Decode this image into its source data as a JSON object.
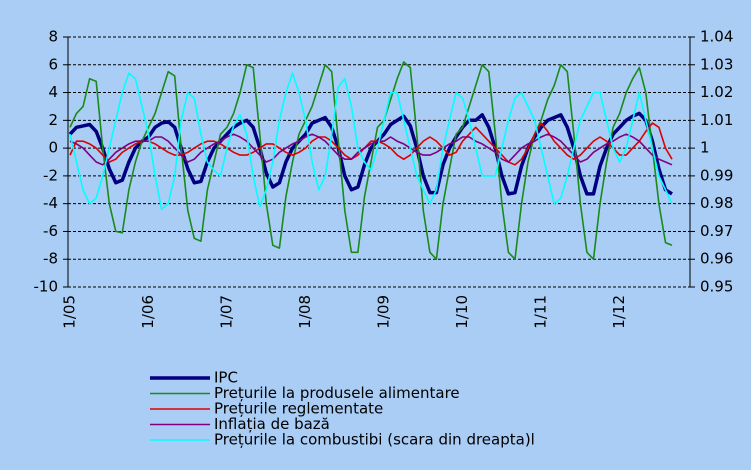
{
  "chart_data": {
    "type": "line",
    "categories": [
      "1/05",
      null,
      null,
      null,
      null,
      null,
      null,
      null,
      null,
      null,
      null,
      null,
      "1/06",
      null,
      null,
      null,
      null,
      null,
      null,
      null,
      null,
      null,
      null,
      null,
      "1/07",
      null,
      null,
      null,
      null,
      null,
      null,
      null,
      null,
      null,
      null,
      null,
      "1/08",
      null,
      null,
      null,
      null,
      null,
      null,
      null,
      null,
      null,
      null,
      null,
      "1/09",
      null,
      null,
      null,
      null,
      null,
      null,
      null,
      null,
      null,
      null,
      null,
      "1/10",
      null,
      null,
      null,
      null,
      null,
      null,
      null,
      null,
      null,
      null,
      null,
      "1/11",
      null,
      null,
      null,
      null,
      null,
      null,
      null,
      null,
      null,
      null,
      null,
      "1/12",
      null,
      null,
      null,
      null,
      null,
      null,
      null,
      null
    ],
    "ylim": [
      -10,
      8
    ],
    "yticks": [
      -10,
      -8,
      -6,
      -4,
      -2,
      0,
      2,
      4,
      6,
      8
    ],
    "y2lim": [
      0.95,
      1.04
    ],
    "y2ticks": [
      0.95,
      0.96,
      0.97,
      0.98,
      0.99,
      1,
      1.01,
      1.02,
      1.03,
      1.04
    ],
    "grid": true,
    "legend": "bottom",
    "series": [
      {
        "name": "IPC",
        "color": "#000080",
        "values": [
          1,
          1.5,
          1.6,
          1.7,
          1.2,
          0,
          -1.5,
          -2.5,
          -2.3,
          -1,
          0,
          0.5,
          0.8,
          1.5,
          1.8,
          1.9,
          1.5,
          0,
          -1.5,
          -2.5,
          -2.4,
          -1,
          0,
          0.5,
          1,
          1.5,
          1.8,
          2,
          1.5,
          0,
          -1.8,
          -2.8,
          -2.5,
          -1,
          0,
          0.5,
          1,
          1.8,
          2,
          2.2,
          1.5,
          0,
          -2,
          -3,
          -2.8,
          -1.2,
          0,
          0.5,
          1,
          1.7,
          2,
          2.3,
          1.6,
          0,
          -2,
          -3.2,
          -3.2,
          -1.2,
          0,
          0.8,
          1.5,
          2,
          2,
          2.4,
          1.5,
          0,
          -2,
          -3.3,
          -3.2,
          -1.3,
          0,
          0.8,
          1.5,
          2,
          2.2,
          2.4,
          1.5,
          0,
          -2,
          -3.3,
          -3.3,
          -1.3,
          0,
          1,
          1.5,
          2,
          2.3,
          2.5,
          2,
          0.5,
          -1.5,
          -3,
          -3.3
        ]
      },
      {
        "name": "Prețurile la produsele alimentare",
        "color": "#1a8a1a",
        "values": [
          1.5,
          2.5,
          3,
          5,
          4.8,
          0,
          -4,
          -6,
          -6.1,
          -3,
          -1,
          0.5,
          1.5,
          2.5,
          4,
          5.5,
          5.2,
          0,
          -4.5,
          -6.5,
          -6.7,
          -3,
          -1,
          1,
          1.5,
          2.5,
          4,
          6,
          5.8,
          1,
          -4,
          -7,
          -7.2,
          -3.5,
          -1,
          1,
          2,
          3,
          4.5,
          6,
          5.5,
          0.5,
          -4.5,
          -7.5,
          -7.5,
          -3.5,
          -1,
          1.5,
          2,
          3.5,
          5,
          6.2,
          5.8,
          1,
          -4.5,
          -7.5,
          -8,
          -4,
          -1.5,
          1,
          1.5,
          3,
          4.5,
          6,
          5.5,
          1,
          -4,
          -7.5,
          -8,
          -4,
          -1,
          1,
          2,
          3.5,
          4.5,
          6,
          5.5,
          1,
          -4,
          -7.5,
          -8,
          -4,
          -1,
          1.5,
          2.5,
          4,
          5,
          5.8,
          4,
          0,
          -4,
          -6.8,
          -7
        ]
      },
      {
        "name": "Prețurile reglementate",
        "color": "#e00000",
        "values": [
          -0.5,
          0.5,
          0.5,
          0.3,
          0,
          -0.5,
          -1,
          -0.8,
          -0.3,
          0,
          0.3,
          0.5,
          0.5,
          0.3,
          0,
          -0.3,
          -0.5,
          -0.5,
          -0.3,
          0,
          0.3,
          0.5,
          0.5,
          0.3,
          0,
          -0.3,
          -0.5,
          -0.5,
          -0.3,
          0,
          0.3,
          0.3,
          0,
          -0.3,
          -0.5,
          -0.3,
          0,
          0.5,
          0.8,
          0.8,
          0.5,
          0,
          -0.5,
          -0.8,
          -0.5,
          0,
          0.5,
          0.5,
          0.3,
          0,
          -0.5,
          -0.8,
          -0.5,
          0,
          0.5,
          0.8,
          0.5,
          0,
          -0.5,
          -0.3,
          0.5,
          1,
          1.5,
          1,
          0.5,
          0,
          -0.5,
          -1,
          -1.2,
          -0.8,
          0,
          1,
          1.8,
          1.2,
          0.5,
          0,
          -0.5,
          -0.8,
          -0.5,
          0,
          0.5,
          0.8,
          0.5,
          0,
          -0.5,
          -0.5,
          0,
          0.5,
          1.2,
          1.8,
          1.5,
          0,
          -0.8
        ]
      },
      {
        "name": "Inflația de bază",
        "color": "#800080",
        "values": [
          0.5,
          0.3,
          0,
          -0.5,
          -1,
          -1.2,
          -0.8,
          -0.3,
          0,
          0.3,
          0.5,
          0.5,
          0.5,
          0.8,
          0.8,
          0.5,
          0,
          -0.5,
          -1,
          -0.8,
          -0.3,
          0,
          0.3,
          0.5,
          0.8,
          1,
          0.8,
          0.5,
          0,
          -0.5,
          -1,
          -0.8,
          -0.3,
          0,
          0.3,
          0.5,
          0.8,
          1,
          0.8,
          0.5,
          0,
          -0.5,
          -0.8,
          -0.8,
          -0.3,
          0,
          0.3,
          0.5,
          0.5,
          0.8,
          0.5,
          0.3,
          0,
          -0.3,
          -0.5,
          -0.5,
          -0.3,
          0,
          0.3,
          0.5,
          0.8,
          0.8,
          0.5,
          0.3,
          0,
          -0.3,
          -0.8,
          -1,
          -0.5,
          0,
          0.3,
          0.5,
          0.8,
          1,
          0.8,
          0.5,
          0,
          -0.5,
          -1,
          -0.8,
          -0.3,
          0,
          0.3,
          0.5,
          0.8,
          1,
          0.8,
          0.5,
          0,
          -0.5,
          -0.8,
          -1,
          -1.2
        ]
      },
      {
        "name": "Prețurile la combustibi (scara din dreapta)l",
        "color": "#00ffff",
        "axis": "y2",
        "values": [
          1.005,
          0.995,
          0.985,
          0.98,
          0.982,
          0.99,
          1.0,
          1.01,
          1.02,
          1.027,
          1.025,
          1.015,
          1.005,
          0.99,
          0.978,
          0.98,
          0.99,
          1.01,
          1.02,
          1.018,
          1.005,
          0.995,
          0.992,
          0.99,
          1.0,
          1.008,
          1.012,
          1.005,
          0.99,
          0.979,
          0.985,
          0.995,
          1.01,
          1.02,
          1.027,
          1.02,
          1.01,
          0.995,
          0.985,
          0.99,
          1.005,
          1.022,
          1.025,
          1.015,
          1.0,
          0.995,
          0.992,
          1.0,
          1.01,
          1.02,
          1.02,
          1.01,
          1.0,
          0.99,
          0.985,
          0.98,
          0.985,
          1.0,
          1.01,
          1.02,
          1.018,
          1.01,
          1.0,
          0.99,
          0.99,
          0.99,
          1.0,
          1.01,
          1.018,
          1.02,
          1.015,
          1.01,
          1.0,
          0.99,
          0.98,
          0.982,
          0.99,
          1.0,
          1.01,
          1.015,
          1.02,
          1.02,
          1.01,
          1.0,
          0.995,
          1.0,
          1.01,
          1.02,
          1.01,
          1.0,
          0.99,
          0.985,
          0.98
        ]
      }
    ]
  }
}
